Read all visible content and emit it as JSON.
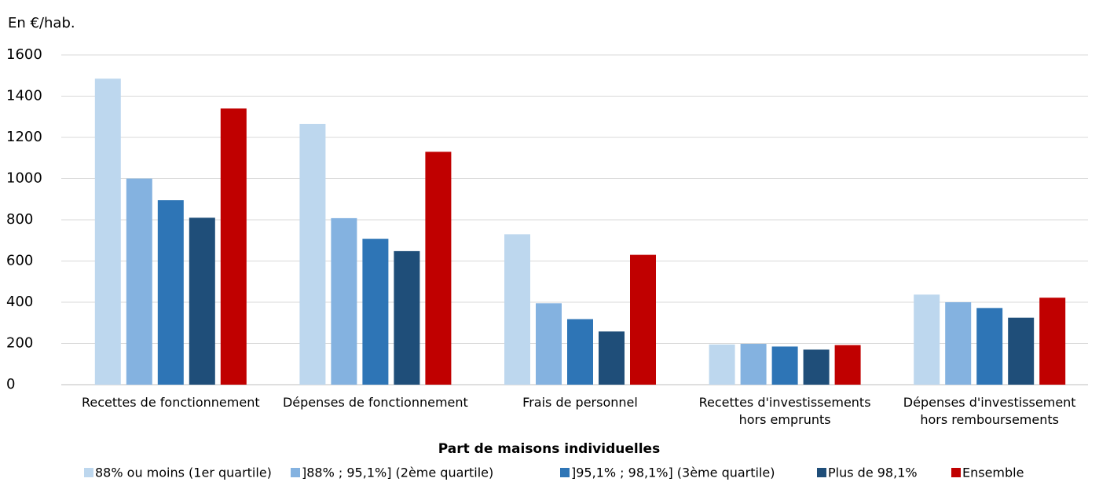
{
  "chart_data": {
    "type": "bar",
    "title": "En €/hab.",
    "x_label": "Part de maisons individuelles",
    "categories": [
      "Recettes de fonctionnement",
      "Dépenses de fonctionnement",
      "Frais de personnel",
      "Recettes d'investissements hors emprunts",
      "Dépenses d'investissement hors remboursements"
    ],
    "series": [
      {
        "name": "88% ou moins (1er quartile)",
        "color": "#bdd7ee",
        "values": [
          1485,
          1265,
          730,
          195,
          437
        ]
      },
      {
        "name": "]88% ; 95,1%] (2ème quartile)",
        "color": "#84b2e0",
        "values": [
          1000,
          808,
          395,
          198,
          400
        ]
      },
      {
        "name": "]95,1% ; 98,1%] (3ème quartile)",
        "color": "#2e75b6",
        "values": [
          895,
          708,
          318,
          185,
          372
        ]
      },
      {
        "name": "Plus de 98,1%",
        "color": "#1f4e79",
        "values": [
          810,
          648,
          258,
          170,
          325
        ]
      },
      {
        "name": "Ensemble",
        "color": "#c00000",
        "values": [
          1340,
          1130,
          630,
          192,
          422
        ]
      }
    ],
    "ylim": [
      0,
      1600
    ],
    "yticks": [
      0,
      200,
      400,
      600,
      800,
      1000,
      1200,
      1400,
      1600
    ],
    "grid": true,
    "legend": "bottom"
  }
}
